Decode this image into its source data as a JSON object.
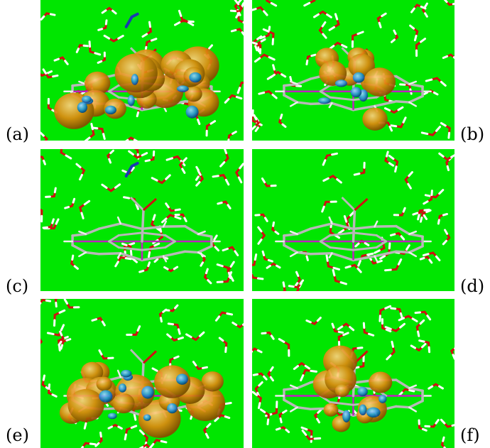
{
  "figure": {
    "background_color": "#00e600",
    "panels": [
      {
        "label": "(a)",
        "orbital": "isosurface-dense",
        "ligand": true
      },
      {
        "label": "(b)",
        "orbital": "isosurface-center",
        "ligand": false
      },
      {
        "label": "(c)",
        "orbital": "none",
        "ligand": true
      },
      {
        "label": "(d)",
        "orbital": "none",
        "ligand": false
      },
      {
        "label": "(e)",
        "orbital": "isosurface-dense",
        "ligand": false
      },
      {
        "label": "(f)",
        "orbital": "isosurface-center",
        "ligand": false
      }
    ],
    "colors": {
      "lobe_positive": "#e08a10",
      "lobe_negative": "#2a8fd0",
      "bond": "#b8b8b8",
      "metal": "#c020c0",
      "water_oxygen": "#d01010",
      "water_hydrogen": "#ffffff",
      "nitrosyl": "#1a3ab0"
    }
  }
}
